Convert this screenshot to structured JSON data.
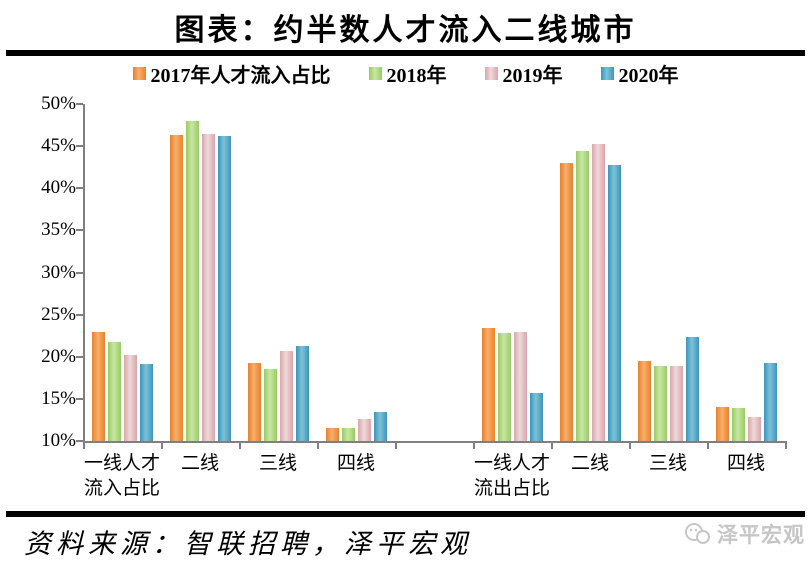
{
  "header": {
    "title": "图表：约半数人才流入二线城市"
  },
  "chart_data": {
    "type": "bar",
    "title": "图表：约半数人才流入二线城市",
    "categories": [
      [
        "一线人才",
        "流入占比"
      ],
      [
        "二线"
      ],
      [
        "三线"
      ],
      [
        "四线"
      ],
      [
        ""
      ],
      [
        "一线人才",
        "流出占比"
      ],
      [
        "二线"
      ],
      [
        "三线"
      ],
      [
        "四线"
      ]
    ],
    "series": [
      {
        "name": "2017年人才流入占比",
        "color": "#ED8C38",
        "color_edge": "#E5832C",
        "color_light": "#F8AE6C",
        "values": [
          22.9,
          46.3,
          19.3,
          11.6,
          null,
          23.4,
          43.0,
          19.5,
          14.0
        ]
      },
      {
        "name": "2018年",
        "color": "#A2D273",
        "color_edge": "#97CB62",
        "color_light": "#C9E7A4",
        "values": [
          21.8,
          48.0,
          18.6,
          11.6,
          null,
          22.8,
          44.4,
          18.9,
          13.9
        ]
      },
      {
        "name": "2019年",
        "color": "#E0B7BB",
        "color_edge": "#D8A6AB",
        "color_light": "#F0D8DA",
        "values": [
          20.2,
          46.4,
          20.7,
          12.6,
          null,
          22.9,
          45.3,
          18.9,
          12.9
        ]
      },
      {
        "name": "2020年",
        "color": "#48A2C4",
        "color_edge": "#3D95B7",
        "color_light": "#7CC2DA",
        "values": [
          19.1,
          46.2,
          21.3,
          13.4,
          null,
          15.7,
          42.8,
          22.4,
          19.3
        ]
      }
    ],
    "ylim": [
      10,
      50
    ],
    "ytick_step": 5,
    "ytick_labels": [
      "10%",
      "15%",
      "20%",
      "25%",
      "30%",
      "35%",
      "40%",
      "45%",
      "50%"
    ],
    "grid": false,
    "legend_position": "top",
    "axis_color": "#7f7f7f"
  },
  "footer": {
    "source": "资料来源：智联招聘，泽平宏观",
    "brand": "泽平宏观"
  }
}
